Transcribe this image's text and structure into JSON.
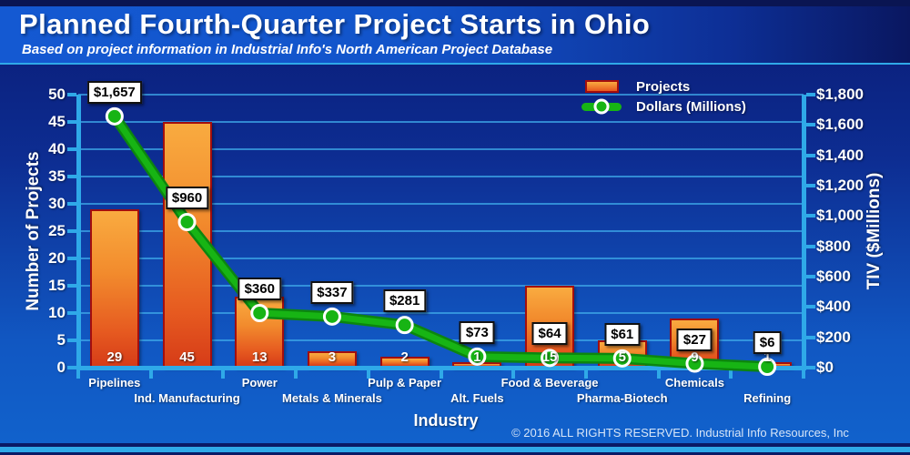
{
  "header": {
    "title": "Planned Fourth-Quarter Project Starts in Ohio",
    "subtitle": "Based on project information in Industrial Info's North American Project Database"
  },
  "legend": {
    "items": [
      {
        "label": "Projects",
        "swatch": "orange-bar"
      },
      {
        "label": "Dollars (Millions)",
        "swatch": "green-line-marker"
      }
    ]
  },
  "footer": {
    "copyright": "© 2016 ALL RIGHTS RESERVED. Industrial Info Resources, Inc"
  },
  "colors": {
    "accent_cyan": "#2fa9e8",
    "bar_orange": "#f28b2d",
    "bar_border_red": "#a30e0e",
    "line_green": "#17b414",
    "line_green_dark": "#0c860f",
    "header_blue": "#1254ca",
    "background_navy": "#0a1b74",
    "label_box_bg": "#ffffff",
    "label_box_text": "#000000"
  },
  "chart_data": {
    "type": "combo-bar-line",
    "title": "Planned Fourth-Quarter Project Starts in Ohio",
    "categories": [
      "Pipelines",
      "Ind. Manufacturing",
      "Power",
      "Metals & Minerals",
      "Pulp & Paper",
      "Alt. Fuels",
      "Food & Beverage",
      "Pharma-Biotech",
      "Chemicals",
      "Refining"
    ],
    "series": [
      {
        "name": "Projects",
        "type": "bar",
        "axis": "left",
        "color": "#f28b2d",
        "values": [
          29,
          45,
          13,
          3,
          2,
          1,
          15,
          5,
          9,
          1
        ]
      },
      {
        "name": "Dollars (Millions)",
        "type": "line",
        "axis": "right",
        "color": "#17b414",
        "values": [
          1657,
          960,
          360,
          337,
          281,
          73,
          64,
          61,
          27,
          6
        ],
        "point_labels": [
          "$1,657",
          "$960",
          "$360",
          "$337",
          "$281",
          "$73",
          "$64",
          "$61",
          "$27",
          "$6"
        ]
      }
    ],
    "xlabel": "Industry",
    "left_axis": {
      "label": "Number of Projects",
      "min": 0,
      "max": 50,
      "step": 5,
      "ticks": [
        "0",
        "5",
        "10",
        "15",
        "20",
        "25",
        "30",
        "35",
        "40",
        "45",
        "50"
      ]
    },
    "right_axis": {
      "label": "TIV ($Millions)",
      "min": 0,
      "max": 1800,
      "step": 200,
      "ticks": [
        "$0",
        "$200",
        "$400",
        "$600",
        "$800",
        "$1,000",
        "$1,200",
        "$1,400",
        "$1,600",
        "$1,800"
      ]
    },
    "grid": "horizontal",
    "legend_position": "top-right"
  }
}
